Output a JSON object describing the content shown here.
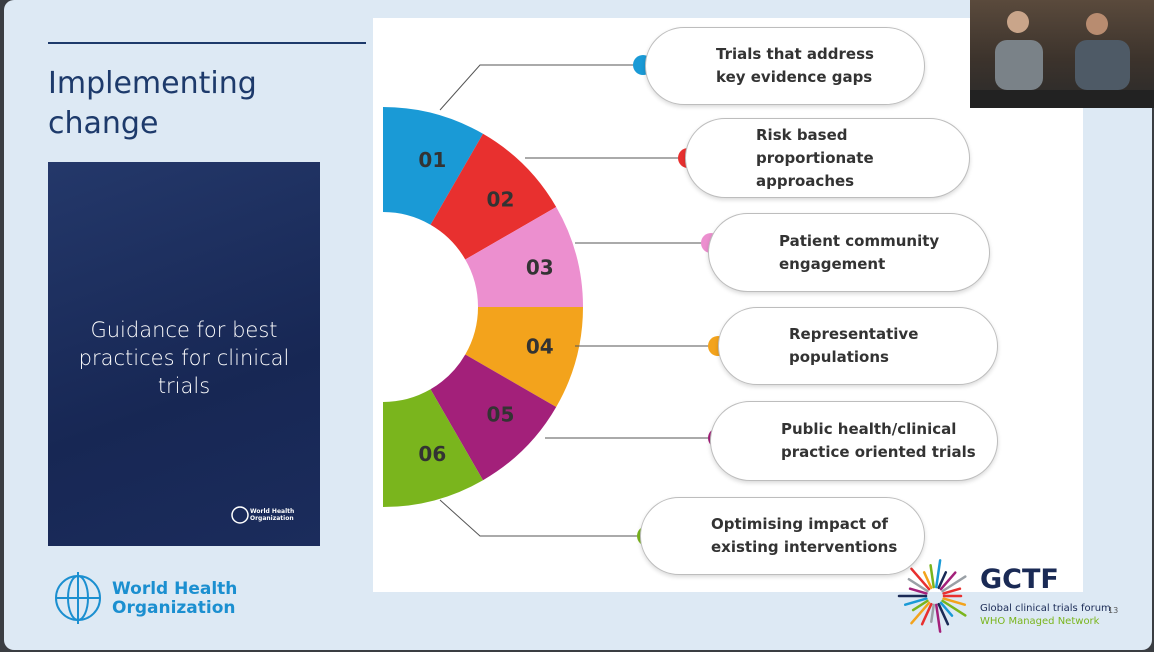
{
  "slide": {
    "title": "Implementing change",
    "cover": {
      "title": "Guidance for best practices for clinical trials",
      "publisher": "World Health Organization"
    },
    "logo": "World Health Organization",
    "items": [
      {
        "number": "01",
        "label": "Trials that address key evidence gaps"
      },
      {
        "number": "02",
        "label": "Risk based proportionate approaches"
      },
      {
        "number": "03",
        "label": "Patient community engagement"
      },
      {
        "number": "04",
        "label": "Representative populations"
      },
      {
        "number": "05",
        "label": "Public health/clinical practice oriented trials"
      },
      {
        "number": "06",
        "label": "Optimising impact of existing interventions"
      }
    ],
    "gctf": {
      "name": "GCTF",
      "tagline": "Global clinical trials forum",
      "network": "WHO Managed Network"
    },
    "page_number": "13"
  }
}
